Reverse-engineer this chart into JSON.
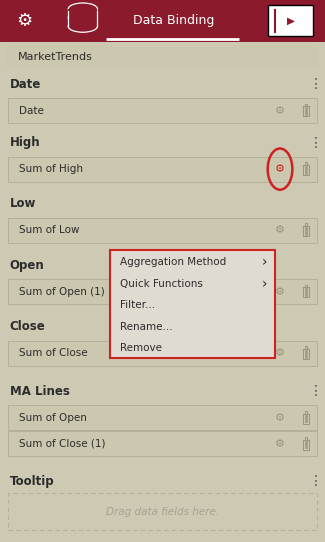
{
  "panel_bg": "#cdc9b3",
  "header_bg": "#8b1a2d",
  "header_text": "Data Binding",
  "dataset_name": "MarketTrends",
  "tooltip_placeholder": "Drag data fields here.",
  "item_bg": "#ccc7af",
  "item_border": "#b5b09a",
  "gear_color": "#9a9480",
  "trash_color": "#9a9480",
  "section_color": "#2c2c2c",
  "item_text_color": "#2c2c2c",
  "dots_color": "#555550",
  "context_bg": "#e0dbd0",
  "context_border": "#cc2222",
  "context_text": "#2c2c2c",
  "gear_highlight": "#cc2222",
  "menu_items": [
    "Aggregation Method",
    "Quick Functions",
    "Filter...",
    "Rename...",
    "Remove"
  ],
  "menu_arrows": [
    true,
    true,
    false,
    false,
    false
  ]
}
